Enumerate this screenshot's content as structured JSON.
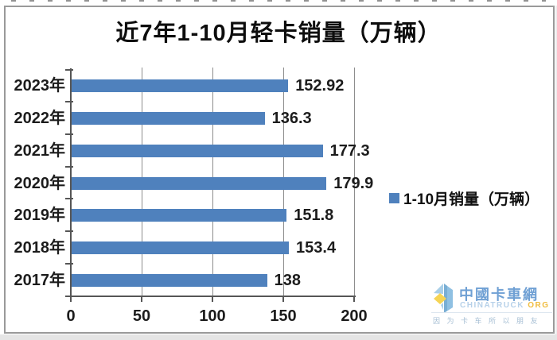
{
  "chart_data": {
    "type": "bar",
    "orientation": "horizontal",
    "title": "近7年1-10月轻卡销量（万辆）",
    "categories": [
      "2023年",
      "2022年",
      "2021年",
      "2020年",
      "2019年",
      "2018年",
      "2017年"
    ],
    "values": [
      152.92,
      136.3,
      177.3,
      179.9,
      151.8,
      153.4,
      138
    ],
    "labels": [
      "152.92",
      "136.3",
      "177.3",
      "179.9",
      "151.8",
      "153.4",
      "138"
    ],
    "series_name": "1-10月销量（万辆）",
    "legend_label": "1-10月销量（万辆）",
    "legend_position": "right",
    "xlim": [
      0,
      200
    ],
    "x_ticks": [
      0,
      50,
      100,
      150,
      200
    ],
    "grid": true,
    "bar_color": "#4F81BD"
  },
  "watermark": {
    "name": "中國卡車網",
    "name_en": "CHINATRUCK",
    "name_en_suffix": "ORG",
    "slogan": "因为卡车所以朋友",
    "name_color": "#6fa0d4",
    "en_color": "#b7d1e9",
    "org_color": "#f0bc3f"
  }
}
